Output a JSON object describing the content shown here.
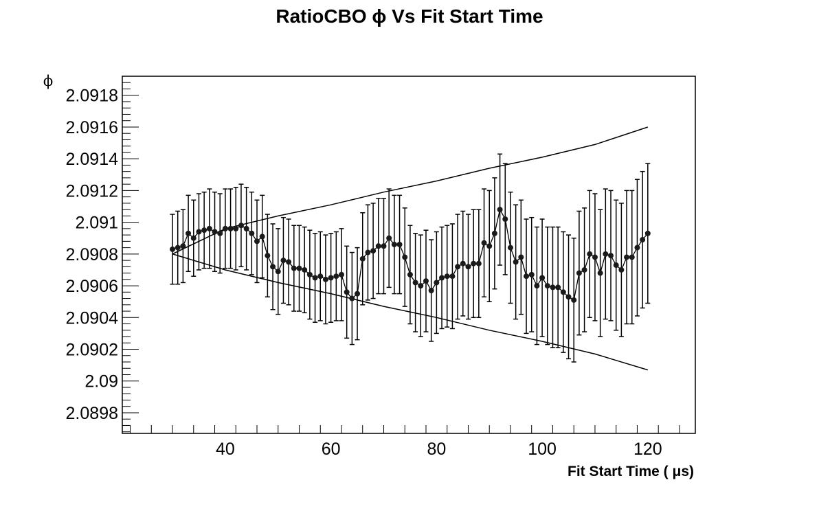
{
  "chart_data": {
    "type": "scatter",
    "title": "RatioCBO ϕ Vs Fit Start Time",
    "xlabel": "Fit Start Time ( μs)",
    "ylabel": "ϕ",
    "xlim": [
      20.5,
      129
    ],
    "ylim": [
      2.08967,
      2.09192
    ],
    "x_ticks": [
      40,
      60,
      80,
      100,
      120
    ],
    "x_tick_labels": [
      "40",
      "60",
      "80",
      "100",
      "120"
    ],
    "y_ticks": [
      2.0898,
      2.09,
      2.0902,
      2.0904,
      2.0906,
      2.0908,
      2.091,
      2.0912,
      2.0914,
      2.0916,
      2.0918
    ],
    "y_tick_labels": [
      "2.0898",
      "2.09",
      "2.0902",
      "2.0904",
      "2.0906",
      "2.0908",
      "2.091",
      "2.0912",
      "2.0914",
      "2.0916",
      "2.0918"
    ],
    "grid": false,
    "legend": "none",
    "series": [
      {
        "type": "points_with_errorbars",
        "x": [
          30,
          31,
          32,
          33,
          34,
          35,
          36,
          37,
          38,
          39,
          40,
          41,
          42,
          43,
          44,
          45,
          46,
          47,
          48,
          49,
          50,
          51,
          52,
          53,
          54,
          55,
          56,
          57,
          58,
          59,
          60,
          61,
          62,
          63,
          64,
          65,
          66,
          67,
          68,
          69,
          70,
          71,
          72,
          73,
          74,
          75,
          76,
          77,
          78,
          79,
          80,
          81,
          82,
          83,
          84,
          85,
          86,
          87,
          88,
          89,
          90,
          91,
          92,
          93,
          94,
          95,
          96,
          97,
          98,
          99,
          100,
          101,
          102,
          103,
          104,
          105,
          106,
          107,
          108,
          109,
          110,
          111,
          112,
          113,
          114,
          115,
          116,
          117,
          118,
          119,
          120
        ],
        "y": [
          2.09083,
          2.09084,
          2.09085,
          2.09093,
          2.0909,
          2.09094,
          2.09095,
          2.09096,
          2.09094,
          2.09093,
          2.09096,
          2.09096,
          2.09096,
          2.09098,
          2.09096,
          2.09093,
          2.09088,
          2.09091,
          2.09079,
          2.09072,
          2.09069,
          2.09076,
          2.09075,
          2.09071,
          2.09071,
          2.0907,
          2.09067,
          2.09065,
          2.09066,
          2.09064,
          2.09065,
          2.09066,
          2.09067,
          2.09056,
          2.09052,
          2.09055,
          2.09077,
          2.09081,
          2.09082,
          2.09085,
          2.09085,
          2.0909,
          2.09086,
          2.09086,
          2.09078,
          2.09067,
          2.09062,
          2.0906,
          2.09063,
          2.09057,
          2.09062,
          2.09065,
          2.09066,
          2.09066,
          2.09072,
          2.09074,
          2.09072,
          2.09074,
          2.09074,
          2.09087,
          2.09085,
          2.09093,
          2.09108,
          2.09102,
          2.09084,
          2.09075,
          2.09078,
          2.09066,
          2.09067,
          2.0906,
          2.09065,
          2.0906,
          2.09059,
          2.09059,
          2.09056,
          2.09053,
          2.09051,
          2.09068,
          2.0907,
          2.0908,
          2.09078,
          2.09068,
          2.0908,
          2.09079,
          2.09073,
          2.0907,
          2.09078,
          2.09078,
          2.09084,
          2.09089,
          2.09093
        ],
        "yerr": [
          0.00022,
          0.00023,
          0.00023,
          0.00024,
          0.00024,
          0.00024,
          0.00024,
          0.00025,
          0.00025,
          0.00025,
          0.00025,
          0.00025,
          0.00026,
          0.00026,
          0.00026,
          0.00026,
          0.00026,
          0.00026,
          0.00026,
          0.00027,
          0.00027,
          0.00027,
          0.00027,
          0.00027,
          0.00027,
          0.00027,
          0.00028,
          0.00028,
          0.00028,
          0.00028,
          0.00028,
          0.00028,
          0.00029,
          0.00029,
          0.00029,
          0.00029,
          0.00029,
          0.0003,
          0.0003,
          0.0003,
          0.0003,
          0.00031,
          0.00031,
          0.00031,
          0.00031,
          0.00031,
          0.00031,
          0.00032,
          0.00032,
          0.00032,
          0.00032,
          0.00032,
          0.00032,
          0.00033,
          0.00033,
          0.00033,
          0.00033,
          0.00034,
          0.00034,
          0.00034,
          0.00035,
          0.00035,
          0.00035,
          0.00035,
          0.00035,
          0.00036,
          0.00036,
          0.00036,
          0.00036,
          0.00037,
          0.00037,
          0.00037,
          0.00038,
          0.00038,
          0.00038,
          0.00039,
          0.00039,
          0.00039,
          0.00039,
          0.0004,
          0.0004,
          0.0004,
          0.00041,
          0.00041,
          0.00041,
          0.00042,
          0.00042,
          0.00042,
          0.00043,
          0.00043,
          0.00044
        ]
      },
      {
        "type": "band_upper",
        "x": [
          30,
          40,
          50,
          60,
          70,
          80,
          90,
          100,
          110,
          120
        ],
        "y": [
          2.0908,
          2.09096,
          2.09104,
          2.09111,
          2.09119,
          2.09126,
          2.09134,
          2.09141,
          2.09149,
          2.0916
        ]
      },
      {
        "type": "band_lower",
        "x": [
          30,
          40,
          50,
          60,
          70,
          80,
          90,
          100,
          110,
          120
        ],
        "y": [
          2.0908,
          2.0907,
          2.09062,
          2.09055,
          2.09047,
          2.0904,
          2.09032,
          2.09025,
          2.09017,
          2.09007
        ]
      }
    ]
  }
}
